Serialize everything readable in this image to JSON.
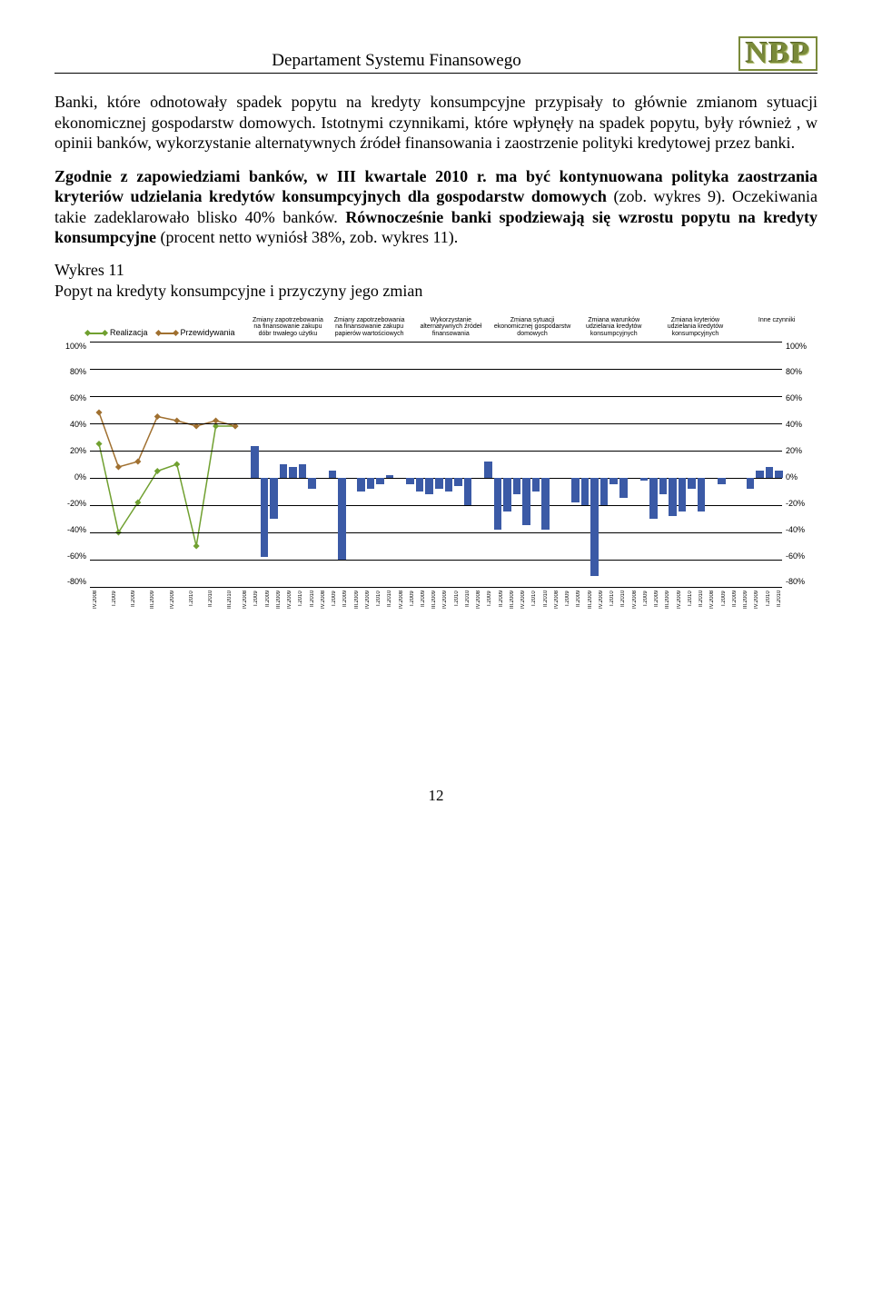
{
  "header": {
    "dept": "Departament Systemu Finansowego",
    "logo": "NBP"
  },
  "paragraphs": {
    "p1": "Banki, które odnotowały spadek popytu na kredyty konsumpcyjne przypisały to głównie zmianom sytuacji ekonomicznej gospodarstw domowych.",
    "p2a": "Istotnymi czynnikami, które wpłynęły na spadek popytu, były również , w opinii banków, wykorzystanie alternatywnych źródeł finansowania i zaostrzenie polityki kredytowej przez banki.",
    "p3a": "Zgodnie z zapowiedziami banków, w III kwartale 2010 r. ma być kontynuowana polityka zaostrzania kryteriów udzielania kredytów konsumpcyjnych dla gospodarstw domowych ",
    "p3b": "(zob. wykres 9). Oczekiwania takie zadeklarowało blisko 40% banków. ",
    "p3c": "Równocześnie banki spodziewają się wzrostu popytu na kredyty konsumpcyjne ",
    "p3d": "(procent netto wyniósł 38%, zob. wykres 11)."
  },
  "figure": {
    "title_a": "Wykres 11",
    "title_b": "Popyt na kredyty konsumpcyjne i przyczyny jego zmian"
  },
  "chart": {
    "ymin": -80,
    "ymax": 100,
    "ytick": 20,
    "yticks": [
      "100%",
      "80%",
      "60%",
      "40%",
      "20%",
      "0%",
      "-20%",
      "-40%",
      "-60%",
      "-80%"
    ],
    "legend": {
      "real": "Realizacja",
      "pred": "Przewidywania"
    },
    "periods": [
      "IV.2008",
      "I.2009",
      "II.2009",
      "III.2009",
      "IV.2009",
      "I.2010",
      "II.2010",
      "III.2010"
    ],
    "line_periods": [
      "IV.2008",
      "I.2009",
      "II.2009",
      "III.2009",
      "IV.2009",
      "I.2010",
      "II.2010",
      "III.2010"
    ],
    "line_real": [
      25,
      -40,
      -18,
      5,
      10,
      -50,
      38,
      38
    ],
    "line_pred": [
      48,
      8,
      12,
      45,
      42,
      38,
      42,
      38
    ],
    "line_real_color": "#70a030",
    "line_pred_color": "#a07030",
    "groups": [
      {
        "label": "Zmiany zapotrzebowania na finansowanie zakupu dóbr trwałego użytku",
        "color": "#3b5aa6",
        "vals": [
          23,
          -58,
          -30,
          10,
          8,
          10,
          -8
        ]
      },
      {
        "label": "Zmiany zapotrzebowania na finansowanie zakupu papierów wartościowych",
        "color": "#3b5aa6",
        "vals": [
          5,
          -60,
          0,
          -10,
          -8,
          -5,
          2
        ]
      },
      {
        "label": "Wykorzystanie alternatywnych źródeł finansowania",
        "color": "#3b5aa6",
        "vals": [
          -5,
          -10,
          -12,
          -8,
          -10,
          -6,
          -20
        ]
      },
      {
        "label": "Zmiana sytuacji ekonomicznej gospodarstw domowych",
        "color": "#3b5aa6",
        "vals": [
          12,
          -38,
          -25,
          -12,
          -35,
          -10,
          -38
        ]
      },
      {
        "label": "Zmiana warunków udzielania kredytów konsumpcyjnych",
        "color": "#3b5aa6",
        "vals": [
          0,
          -18,
          -20,
          -72,
          -20,
          -5,
          -15
        ]
      },
      {
        "label": "Zmiana kryteriów udzielania kredytów konsumpcyjnych",
        "color": "#3b5aa6",
        "vals": [
          -2,
          -30,
          -12,
          -28,
          -25,
          -8,
          -25
        ]
      },
      {
        "label": "Inne czynniki",
        "color": "#3b5aa6",
        "vals": [
          -5,
          0,
          0,
          -8,
          5,
          8,
          5
        ]
      }
    ],
    "grid_color": "#000000",
    "background": "#ffffff"
  },
  "page_number": "12"
}
